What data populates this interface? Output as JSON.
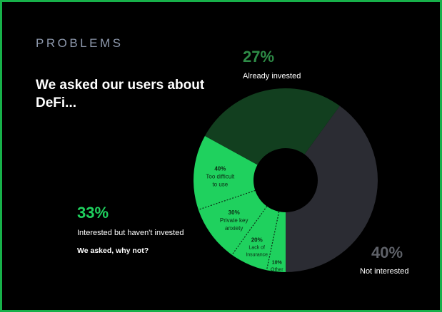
{
  "eyebrow": "PROBLEMS",
  "headline": "We asked our users about DeFi...",
  "chart_data": {
    "type": "pie",
    "variant": "donut",
    "slices": [
      {
        "label": "Already invested",
        "value": 27,
        "display": "27%",
        "color": "#123f1f"
      },
      {
        "label": "Not interested",
        "value": 40,
        "display": "40%",
        "color": "#2b2c33"
      },
      {
        "label": "Interested but haven't invested",
        "value": 33,
        "display": "33%",
        "color": "#1fd15e"
      }
    ],
    "breakdown": {
      "parent": "Interested but haven't invested",
      "question": "We asked, why not?",
      "items": [
        {
          "pct": "40%",
          "label": "Too difficult to use",
          "value": 40
        },
        {
          "pct": "30%",
          "label": "Private key anxiety",
          "value": 30
        },
        {
          "pct": "20%",
          "label": "Lack of Insurance",
          "value": 20
        },
        {
          "pct": "10%",
          "label": "Other",
          "value": 10
        }
      ]
    },
    "colors": {
      "invested_text": "#2e8c47",
      "interested_text": "#1fd15e",
      "not_interested_text": "#5e6168",
      "frame": "#17b04a"
    }
  }
}
